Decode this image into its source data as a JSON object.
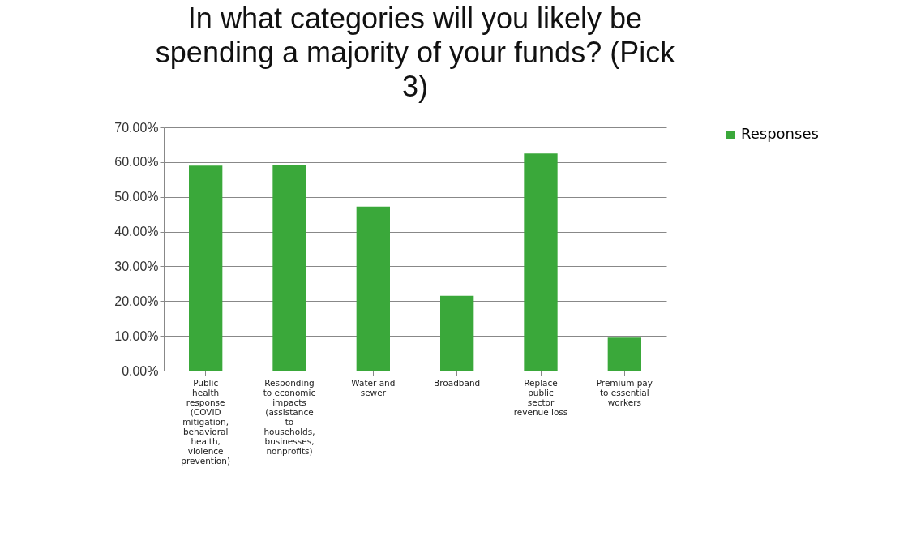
{
  "chart_data": {
    "type": "bar",
    "title": "In what categories will you  likely be spending a majority of your funds? (Pick 3)",
    "categories": [
      "Public health response (COVID mitigation, behavioral health, violence prevention)",
      "Responding to economic impacts (assistance to households, businesses, nonprofits)",
      "Water and sewer",
      "Broadband",
      "Replace public sector revenue loss",
      "Premium pay to essential workers"
    ],
    "series": [
      {
        "name": "Responses",
        "color": "#3aa83a",
        "values": [
          59,
          59.2,
          47.2,
          21.5,
          62.5,
          9.5
        ]
      }
    ],
    "ylim": [
      0,
      70
    ],
    "yticks": [
      {
        "value": 0,
        "label": "0.00%"
      },
      {
        "value": 10,
        "label": "10.00%"
      },
      {
        "value": 20,
        "label": "20.00%"
      },
      {
        "value": 30,
        "label": "30.00%"
      },
      {
        "value": 40,
        "label": "40.00%"
      },
      {
        "value": 50,
        "label": "50.00%"
      },
      {
        "value": 60,
        "label": "60.00%"
      },
      {
        "value": 70,
        "label": "70.00%"
      }
    ],
    "grid": "y",
    "legend": "right"
  }
}
